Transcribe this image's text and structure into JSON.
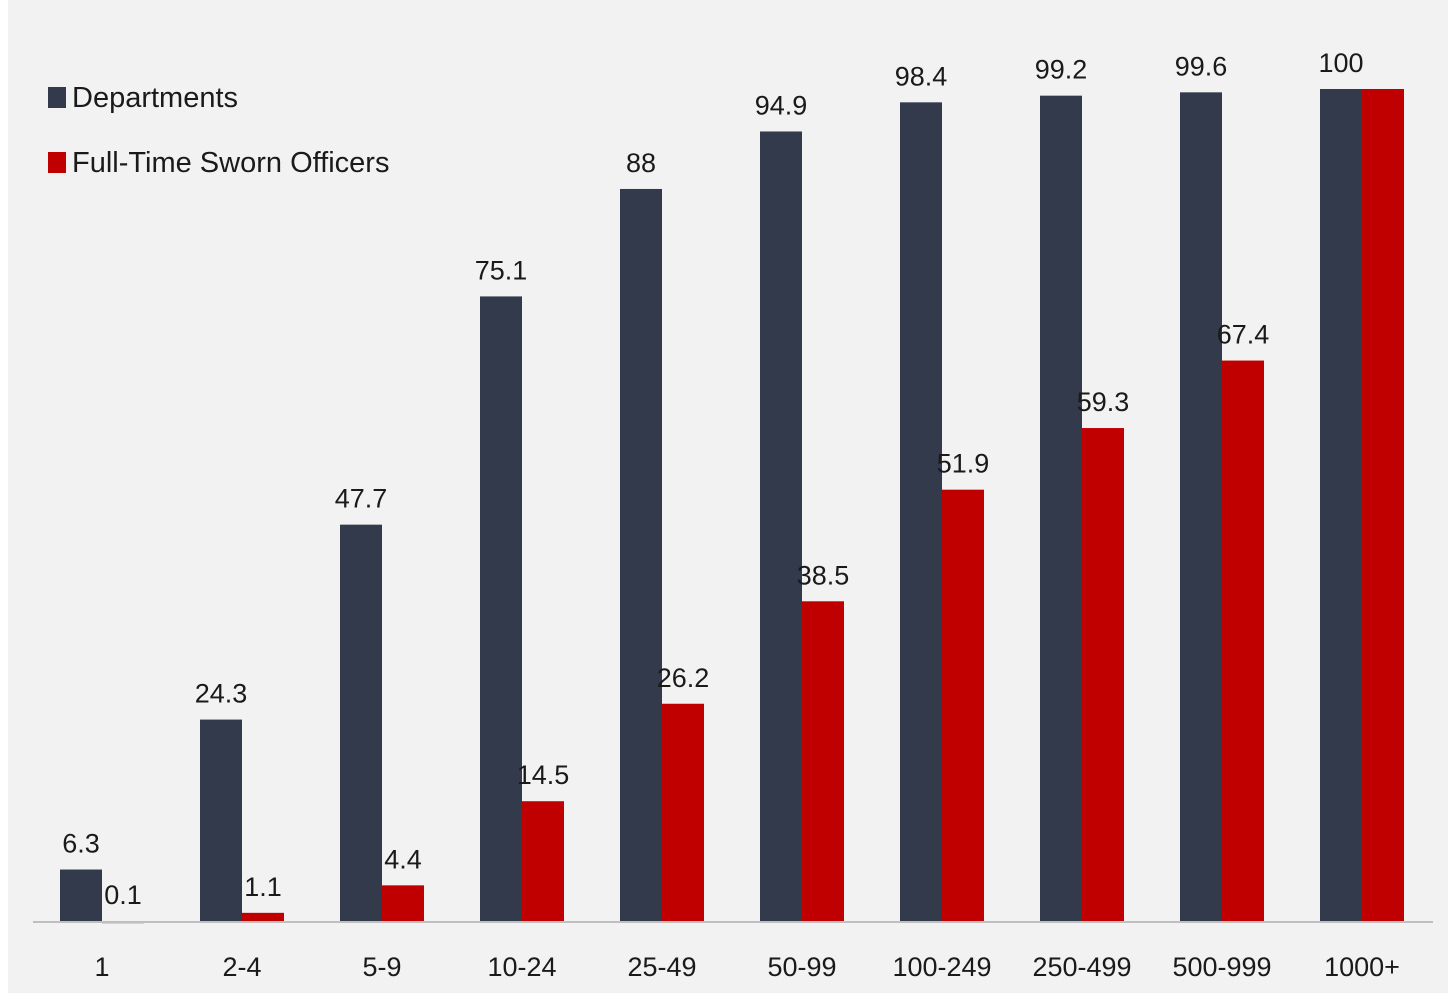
{
  "chart_data": {
    "type": "bar",
    "title": "",
    "xlabel": "",
    "ylabel": "",
    "ylim": [
      0,
      100
    ],
    "grid": false,
    "legend_position": "top-left",
    "categories": [
      "1",
      "2-4",
      "5-9",
      "10-24",
      "25-49",
      "50-99",
      "100-249",
      "250-499",
      "500-999",
      "1000+"
    ],
    "series": [
      {
        "name": "Departments",
        "color": "#323a4b",
        "values": [
          6.3,
          24.3,
          47.7,
          75.1,
          88,
          94.9,
          98.4,
          99.2,
          99.6,
          100
        ],
        "labels": [
          "6.3",
          "24.3",
          "47.7",
          "75.1",
          "88",
          "94.9",
          "98.4",
          "99.2",
          "99.6",
          "100"
        ]
      },
      {
        "name": "Full-Time Sworn Officers",
        "color": "#c00000",
        "values": [
          0.1,
          1.1,
          4.4,
          14.5,
          26.2,
          38.5,
          51.9,
          59.3,
          67.4,
          100
        ],
        "labels": [
          "0.1",
          "1.1",
          "4.4",
          "14.5",
          "26.2",
          "38.5",
          "51.9",
          "59.3",
          "67.4",
          ""
        ]
      }
    ]
  }
}
